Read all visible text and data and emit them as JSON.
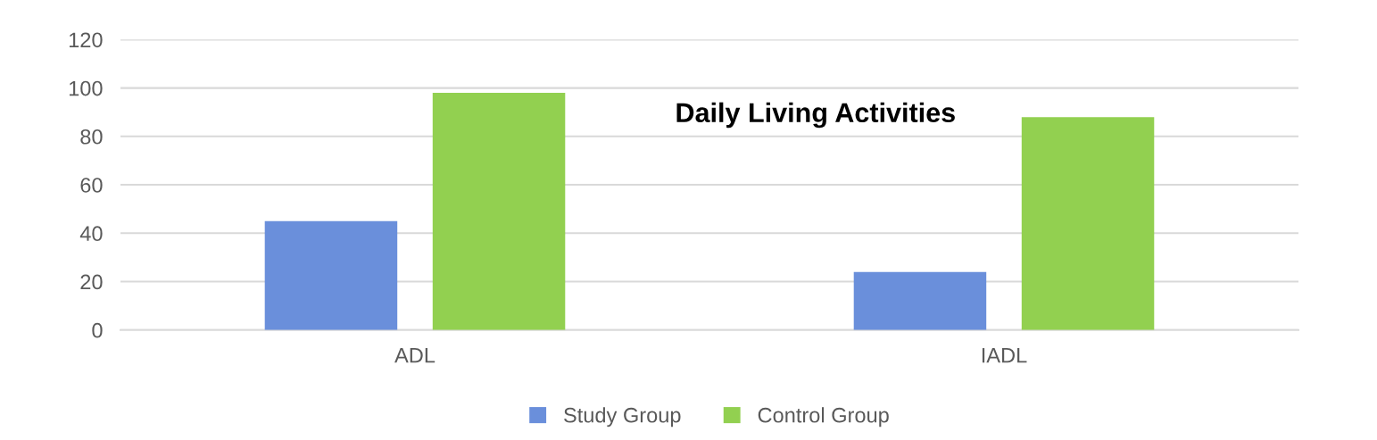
{
  "chart_data": {
    "type": "bar",
    "title": "Daily Living Activities",
    "categories": [
      "ADL",
      "IADL"
    ],
    "series": [
      {
        "name": "Study Group",
        "color": "#6a8fdb",
        "values": [
          45,
          24
        ]
      },
      {
        "name": "Control Group",
        "color": "#92d050",
        "values": [
          98,
          88
        ]
      }
    ],
    "ylim": [
      0,
      120
    ],
    "yticks": [
      0,
      20,
      40,
      60,
      80,
      100,
      120
    ],
    "grid": "y",
    "legend": "bottom"
  }
}
